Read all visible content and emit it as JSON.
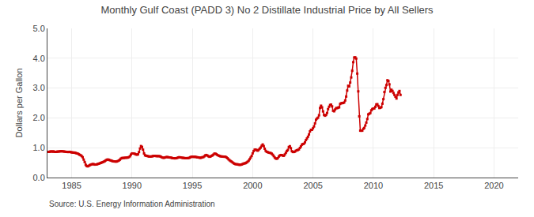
{
  "chart_data": {
    "type": "line",
    "title": "Monthly Gulf Coast (PADD 3) No 2 Distillate Industrial Price by All Sellers",
    "y_label": "Dollars per Gallon",
    "annotations": [
      "Source: U.S. Energy Information Administration"
    ],
    "color": "#cc0000",
    "marker": "square",
    "line_style": "solid",
    "grid": true,
    "xlim": [
      1983,
      2022
    ],
    "xticks": [
      1985,
      1990,
      1995,
      2000,
      2005,
      2010,
      2015,
      2020
    ],
    "ylim": [
      0.0,
      5.0
    ],
    "yticks": [
      {
        "value": 0.0,
        "label": "0.0"
      },
      {
        "value": 1.0,
        "label": "1.0"
      },
      {
        "value": 2.0,
        "label": "2.0"
      },
      {
        "value": 3.0,
        "label": "3.0"
      },
      {
        "value": 4.0,
        "label": "4.0"
      },
      {
        "value": 5.0,
        "label": "5.0"
      }
    ],
    "x": [
      1983.0,
      1983.083,
      1983.167,
      1983.25,
      1983.333,
      1983.417,
      1983.5,
      1983.583,
      1983.667,
      1983.75,
      1983.833,
      1983.917,
      1984.0,
      1984.083,
      1984.167,
      1984.25,
      1984.333,
      1984.417,
      1984.5,
      1984.583,
      1984.667,
      1984.75,
      1984.833,
      1984.917,
      1985.0,
      1985.083,
      1985.167,
      1985.25,
      1985.333,
      1985.417,
      1985.5,
      1985.583,
      1985.667,
      1985.75,
      1985.833,
      1985.917,
      1986.0,
      1986.083,
      1986.167,
      1986.25,
      1986.333,
      1986.417,
      1986.5,
      1986.583,
      1986.667,
      1986.75,
      1986.833,
      1986.917,
      1987.0,
      1987.083,
      1987.167,
      1987.25,
      1987.333,
      1987.417,
      1987.5,
      1987.583,
      1987.667,
      1987.75,
      1987.833,
      1987.917,
      1988.0,
      1988.083,
      1988.167,
      1988.25,
      1988.333,
      1988.417,
      1988.5,
      1988.583,
      1988.667,
      1988.75,
      1988.833,
      1988.917,
      1989.0,
      1989.083,
      1989.167,
      1989.25,
      1989.333,
      1989.417,
      1989.5,
      1989.583,
      1989.667,
      1989.75,
      1989.833,
      1989.917,
      1990.0,
      1990.083,
      1990.167,
      1990.25,
      1990.333,
      1990.417,
      1990.5,
      1990.583,
      1990.667,
      1990.75,
      1990.833,
      1990.917,
      1991.0,
      1991.083,
      1991.167,
      1991.25,
      1991.333,
      1991.417,
      1991.5,
      1991.583,
      1991.667,
      1991.75,
      1991.833,
      1991.917,
      1992.0,
      1992.083,
      1992.167,
      1992.25,
      1992.333,
      1992.417,
      1992.5,
      1992.583,
      1992.667,
      1992.75,
      1992.833,
      1992.917,
      1993.0,
      1993.083,
      1993.167,
      1993.25,
      1993.333,
      1993.417,
      1993.5,
      1993.583,
      1993.667,
      1993.75,
      1993.833,
      1993.917,
      1994.0,
      1994.083,
      1994.167,
      1994.25,
      1994.333,
      1994.417,
      1994.5,
      1994.583,
      1994.667,
      1994.75,
      1994.833,
      1994.917,
      1995.0,
      1995.083,
      1995.167,
      1995.25,
      1995.333,
      1995.417,
      1995.5,
      1995.583,
      1995.667,
      1995.75,
      1995.833,
      1995.917,
      1996.0,
      1996.083,
      1996.167,
      1996.25,
      1996.333,
      1996.417,
      1996.5,
      1996.583,
      1996.667,
      1996.75,
      1996.833,
      1996.917,
      1997.0,
      1997.083,
      1997.167,
      1997.25,
      1997.333,
      1997.417,
      1997.5,
      1997.583,
      1997.667,
      1997.75,
      1997.833,
      1997.917,
      1998.0,
      1998.083,
      1998.167,
      1998.25,
      1998.333,
      1998.417,
      1998.5,
      1998.583,
      1998.667,
      1998.75,
      1998.833,
      1998.917,
      1999.0,
      1999.083,
      1999.167,
      1999.25,
      1999.333,
      1999.417,
      1999.5,
      1999.583,
      1999.667,
      1999.75,
      1999.833,
      1999.917,
      2000.0,
      2000.083,
      2000.167,
      2000.25,
      2000.333,
      2000.417,
      2000.5,
      2000.583,
      2000.667,
      2000.75,
      2000.833,
      2000.917,
      2001.0,
      2001.083,
      2001.167,
      2001.25,
      2001.333,
      2001.417,
      2001.5,
      2001.583,
      2001.667,
      2001.75,
      2001.833,
      2001.917,
      2002.0,
      2002.083,
      2002.167,
      2002.25,
      2002.333,
      2002.417,
      2002.5,
      2002.583,
      2002.667,
      2002.75,
      2002.833,
      2002.917,
      2003.0,
      2003.083,
      2003.167,
      2003.25,
      2003.333,
      2003.417,
      2003.5,
      2003.583,
      2003.667,
      2003.75,
      2003.833,
      2003.917,
      2004.0,
      2004.083,
      2004.167,
      2004.25,
      2004.333,
      2004.417,
      2004.5,
      2004.583,
      2004.667,
      2004.75,
      2004.833,
      2004.917,
      2005.0,
      2005.083,
      2005.167,
      2005.25,
      2005.333,
      2005.417,
      2005.5,
      2005.583,
      2005.667,
      2005.75,
      2005.833,
      2005.917,
      2006.0,
      2006.083,
      2006.167,
      2006.25,
      2006.333,
      2006.417,
      2006.5,
      2006.583,
      2006.667,
      2006.75,
      2006.833,
      2006.917,
      2007.0,
      2007.083,
      2007.167,
      2007.25,
      2007.333,
      2007.417,
      2007.5,
      2007.583,
      2007.667,
      2007.75,
      2007.833,
      2007.917,
      2008.0,
      2008.083,
      2008.167,
      2008.25,
      2008.333,
      2008.417,
      2008.5,
      2008.583,
      2008.667,
      2008.75,
      2008.833,
      2008.917,
      2009.0,
      2009.083,
      2009.167,
      2009.25,
      2009.333,
      2009.417,
      2009.5,
      2009.583,
      2009.667,
      2009.75,
      2009.833,
      2009.917,
      2010.0,
      2010.083,
      2010.167,
      2010.25,
      2010.333,
      2010.417,
      2010.5,
      2010.583,
      2010.667,
      2010.75,
      2010.833,
      2010.917,
      2011.0,
      2011.083,
      2011.167,
      2011.25,
      2011.333,
      2011.417,
      2011.5,
      2011.583,
      2011.667,
      2011.75,
      2011.833,
      2011.917,
      2012.0,
      2012.083,
      2012.167,
      2012.25
    ],
    "values": [
      0.857,
      0.863,
      0.861,
      0.875,
      0.877,
      0.866,
      0.878,
      0.863,
      0.86,
      0.862,
      0.873,
      0.868,
      0.877,
      0.88,
      0.881,
      0.879,
      0.874,
      0.87,
      0.863,
      0.861,
      0.857,
      0.857,
      0.862,
      0.854,
      0.844,
      0.842,
      0.836,
      0.836,
      0.825,
      0.813,
      0.806,
      0.785,
      0.764,
      0.749,
      0.72,
      0.682,
      0.603,
      0.519,
      0.425,
      0.386,
      0.375,
      0.393,
      0.416,
      0.43,
      0.443,
      0.452,
      0.448,
      0.434,
      0.436,
      0.441,
      0.455,
      0.463,
      0.478,
      0.491,
      0.503,
      0.516,
      0.533,
      0.55,
      0.576,
      0.598,
      0.604,
      0.597,
      0.582,
      0.572,
      0.559,
      0.547,
      0.541,
      0.538,
      0.536,
      0.539,
      0.554,
      0.572,
      0.6,
      0.634,
      0.655,
      0.656,
      0.657,
      0.664,
      0.665,
      0.668,
      0.671,
      0.685,
      0.714,
      0.77,
      0.808,
      0.808,
      0.804,
      0.793,
      0.775,
      0.767,
      0.777,
      0.854,
      0.974,
      1.055,
      1.026,
      0.933,
      0.808,
      0.745,
      0.732,
      0.726,
      0.714,
      0.706,
      0.702,
      0.706,
      0.711,
      0.72,
      0.728,
      0.726,
      0.72,
      0.719,
      0.717,
      0.718,
      0.71,
      0.694,
      0.673,
      0.664,
      0.664,
      0.673,
      0.686,
      0.687,
      0.681,
      0.676,
      0.671,
      0.667,
      0.654,
      0.649,
      0.646,
      0.645,
      0.648,
      0.658,
      0.673,
      0.681,
      0.676,
      0.671,
      0.662,
      0.659,
      0.656,
      0.649,
      0.65,
      0.651,
      0.652,
      0.662,
      0.681,
      0.695,
      0.698,
      0.695,
      0.694,
      0.695,
      0.686,
      0.678,
      0.676,
      0.667,
      0.66,
      0.668,
      0.68,
      0.686,
      0.713,
      0.744,
      0.756,
      0.738,
      0.714,
      0.697,
      0.701,
      0.728,
      0.742,
      0.768,
      0.802,
      0.8,
      0.782,
      0.755,
      0.739,
      0.724,
      0.712,
      0.707,
      0.704,
      0.7,
      0.698,
      0.698,
      0.676,
      0.649,
      0.612,
      0.581,
      0.554,
      0.535,
      0.508,
      0.481,
      0.463,
      0.448,
      0.446,
      0.443,
      0.432,
      0.427,
      0.428,
      0.437,
      0.453,
      0.468,
      0.475,
      0.484,
      0.504,
      0.53,
      0.562,
      0.614,
      0.667,
      0.724,
      0.811,
      0.888,
      0.934,
      0.937,
      0.918,
      0.901,
      0.928,
      0.971,
      1.004,
      1.067,
      1.108,
      1.055,
      0.966,
      0.895,
      0.863,
      0.851,
      0.837,
      0.83,
      0.82,
      0.8,
      0.764,
      0.718,
      0.667,
      0.639,
      0.629,
      0.65,
      0.704,
      0.739,
      0.755,
      0.753,
      0.735,
      0.731,
      0.773,
      0.831,
      0.891,
      0.923,
      1.024,
      1.051,
      0.984,
      0.883,
      0.857,
      0.858,
      0.869,
      0.898,
      0.916,
      0.924,
      0.944,
      0.993,
      1.044,
      1.105,
      1.123,
      1.134,
      1.182,
      1.258,
      1.311,
      1.368,
      1.446,
      1.548,
      1.601,
      1.601,
      1.651,
      1.713,
      1.817,
      1.936,
      1.98,
      2.007,
      2.087,
      2.333,
      2.408,
      2.353,
      2.218,
      2.098,
      2.074,
      2.099,
      2.165,
      2.294,
      2.374,
      2.434,
      2.444,
      2.387,
      2.239,
      2.222,
      2.28,
      2.329,
      2.327,
      2.346,
      2.354,
      2.469,
      2.491,
      2.496,
      2.499,
      2.517,
      2.584,
      2.716,
      2.917,
      3.076,
      3.057,
      3.184,
      3.357,
      3.581,
      3.868,
      4.025,
      4.03,
      3.989,
      3.485,
      2.89,
      2.052,
      1.572,
      1.571,
      1.572,
      1.634,
      1.663,
      1.744,
      1.843,
      1.961,
      2.119,
      2.139,
      2.163,
      2.255,
      2.297,
      2.312,
      2.318,
      2.372,
      2.452,
      2.459,
      2.399,
      2.332,
      2.34,
      2.361,
      2.476,
      2.629,
      2.868,
      3.008,
      3.101,
      3.261,
      3.241,
      3.124,
      2.883,
      2.943,
      2.904,
      2.836,
      2.769,
      2.712,
      2.65,
      2.772,
      2.855,
      2.902,
      2.771
    ]
  }
}
